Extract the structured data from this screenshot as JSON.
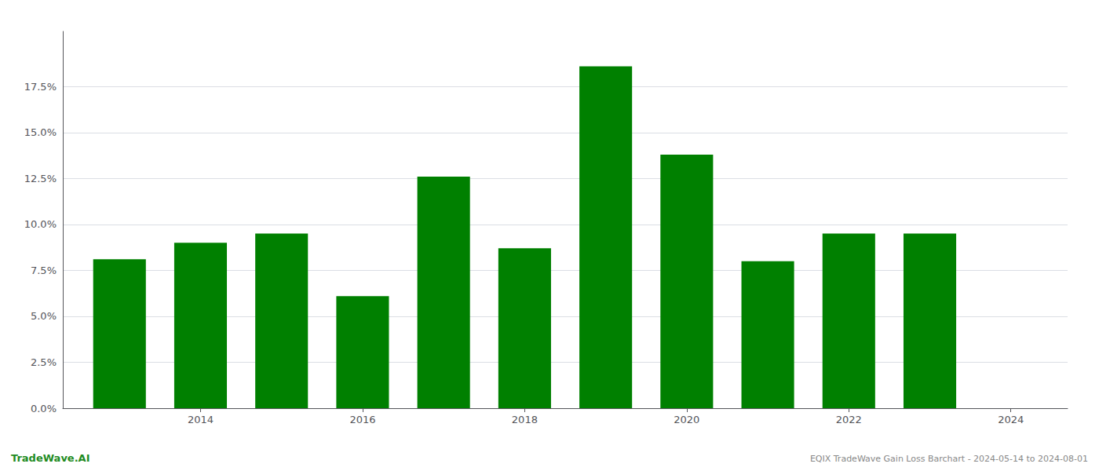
{
  "chart_data": {
    "type": "bar",
    "x": [
      2013,
      2014,
      2015,
      2016,
      2017,
      2018,
      2019,
      2020,
      2021,
      2022,
      2023
    ],
    "values": [
      0.081,
      0.09,
      0.095,
      0.061,
      0.126,
      0.087,
      0.186,
      0.138,
      0.08,
      0.095,
      0.095
    ],
    "color": "#008000",
    "xlim": [
      2012.3,
      2024.7
    ],
    "xticks": [
      2014,
      2016,
      2018,
      2020,
      2022,
      2024
    ],
    "ylim": [
      0,
      0.205
    ],
    "yticks": [
      {
        "value": 0.0,
        "label": "0.0%"
      },
      {
        "value": 0.025,
        "label": "2.5%"
      },
      {
        "value": 0.05,
        "label": "5.0%"
      },
      {
        "value": 0.075,
        "label": "7.5%"
      },
      {
        "value": 0.1,
        "label": "10.0%"
      },
      {
        "value": 0.125,
        "label": "12.5%"
      },
      {
        "value": 0.15,
        "label": "15.0%"
      },
      {
        "value": 0.175,
        "label": "17.5%"
      }
    ],
    "grid": true,
    "annotations": [
      {
        "text": "TradeWave.AI",
        "color": "#228B22"
      },
      {
        "text": "EQIX TradeWave Gain Loss Barchart - 2024-05-14 to 2024-08-01",
        "color": "#888888"
      }
    ]
  }
}
